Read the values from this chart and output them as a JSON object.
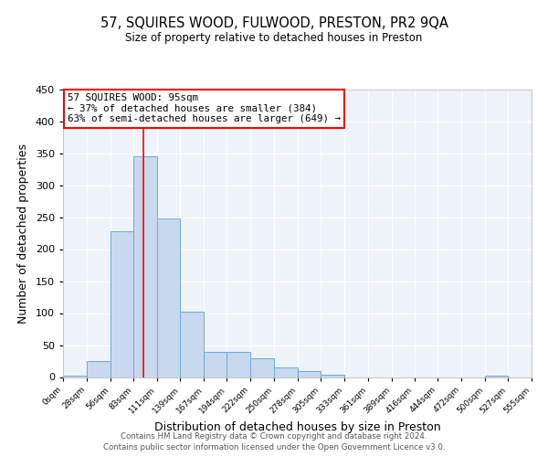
{
  "title": "57, SQUIRES WOOD, FULWOOD, PRESTON, PR2 9QA",
  "subtitle": "Size of property relative to detached houses in Preston",
  "xlabel": "Distribution of detached houses by size in Preston",
  "ylabel": "Number of detached properties",
  "bar_color": "#c8d9ee",
  "bar_edge_color": "#6aaad4",
  "bg_color": "#eef2f9",
  "grid_color": "#ffffff",
  "bin_edges": [
    0,
    28,
    56,
    83,
    111,
    139,
    167,
    194,
    222,
    250,
    278,
    305,
    333,
    361,
    389,
    416,
    444,
    472,
    500,
    527,
    555
  ],
  "bin_labels": [
    "0sqm",
    "28sqm",
    "56sqm",
    "83sqm",
    "111sqm",
    "139sqm",
    "167sqm",
    "194sqm",
    "222sqm",
    "250sqm",
    "278sqm",
    "305sqm",
    "333sqm",
    "361sqm",
    "389sqm",
    "416sqm",
    "444sqm",
    "472sqm",
    "500sqm",
    "527sqm",
    "555sqm"
  ],
  "counts": [
    2,
    25,
    228,
    345,
    248,
    102,
    40,
    40,
    30,
    15,
    10,
    3,
    0,
    0,
    0,
    0,
    0,
    0,
    2,
    0
  ],
  "property_size": 95,
  "annotation_title": "57 SQUIRES WOOD: 95sqm",
  "annotation_line1": "← 37% of detached houses are smaller (384)",
  "annotation_line2": "63% of semi-detached houses are larger (649) →",
  "ylim": [
    0,
    450
  ],
  "yticks": [
    0,
    50,
    100,
    150,
    200,
    250,
    300,
    350,
    400,
    450
  ],
  "footer1": "Contains HM Land Registry data © Crown copyright and database right 2024.",
  "footer2": "Contains public sector information licensed under the Open Government Licence v3.0."
}
